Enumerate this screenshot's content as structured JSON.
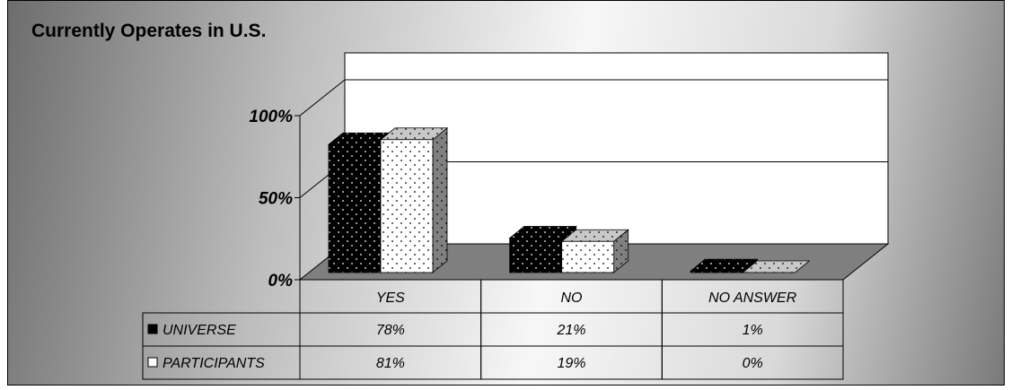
{
  "chart_data": {
    "type": "bar",
    "title": "Currently Operates in U.S.",
    "categories": [
      "YES",
      "NO",
      "NO ANSWER"
    ],
    "series": [
      {
        "name": "UNIVERSE",
        "values": [
          78,
          21,
          1
        ],
        "labels": [
          "78%",
          "21%",
          "1%"
        ],
        "color": "#000000"
      },
      {
        "name": "PARTICIPANTS",
        "values": [
          81,
          19,
          0
        ],
        "labels": [
          "81%",
          "19%",
          "0%"
        ],
        "color": "#ffffff"
      }
    ],
    "yticks": [
      "0%",
      "50%",
      "100%"
    ],
    "ylim": [
      0,
      100
    ],
    "grid": true,
    "legend": "data-table"
  }
}
